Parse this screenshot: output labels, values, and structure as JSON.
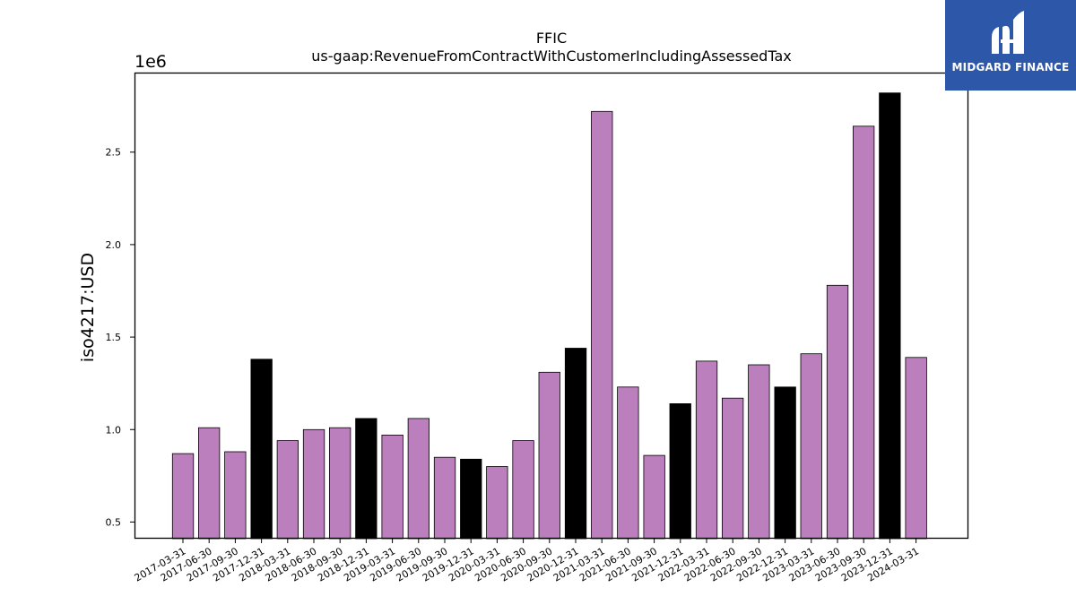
{
  "chart_data": {
    "type": "bar",
    "title": "FFIC",
    "subtitle": "us-gaap:RevenueFromContractWithCustomerIncludingAssessedTax",
    "ylabel": "iso4217:USD",
    "xlabel": "",
    "y_offset_text": "1e6",
    "ylim": [
      0.41,
      2.93
    ],
    "yticks": [
      0.5,
      1.0,
      1.5,
      2.0,
      2.5
    ],
    "ytick_labels": [
      "0.5",
      "1.0",
      "1.5",
      "2.0",
      "2.5"
    ],
    "grid": false,
    "colors": {
      "quarter": "#bc7fbd",
      "year_end": "#000000",
      "edge": "#000000"
    },
    "categories": [
      "2017-03-31",
      "2017-06-30",
      "2017-09-30",
      "2017-12-31",
      "2018-03-31",
      "2018-06-30",
      "2018-09-30",
      "2018-12-31",
      "2019-03-31",
      "2019-06-30",
      "2019-09-30",
      "2019-12-31",
      "2020-03-31",
      "2020-06-30",
      "2020-09-30",
      "2020-12-31",
      "2021-03-31",
      "2021-06-30",
      "2021-09-30",
      "2021-12-31",
      "2022-03-31",
      "2022-06-30",
      "2022-09-30",
      "2022-12-31",
      "2023-03-31",
      "2023-06-30",
      "2023-09-30",
      "2023-12-31",
      "2024-03-31"
    ],
    "values": [
      0.87,
      1.01,
      0.88,
      1.38,
      0.94,
      1.0,
      1.01,
      1.06,
      0.97,
      1.06,
      0.85,
      0.84,
      0.8,
      0.94,
      1.31,
      1.44,
      2.72,
      1.23,
      0.86,
      1.14,
      1.37,
      1.17,
      1.35,
      1.23,
      1.41,
      1.78,
      2.64,
      2.82,
      1.39
    ],
    "highlight": [
      false,
      false,
      false,
      true,
      false,
      false,
      false,
      true,
      false,
      false,
      false,
      true,
      false,
      false,
      false,
      true,
      false,
      false,
      false,
      true,
      false,
      false,
      false,
      true,
      false,
      false,
      false,
      true,
      false
    ]
  },
  "logo": {
    "text": "MIDGARD FINANCE",
    "icon": "midgard-logo-icon"
  }
}
